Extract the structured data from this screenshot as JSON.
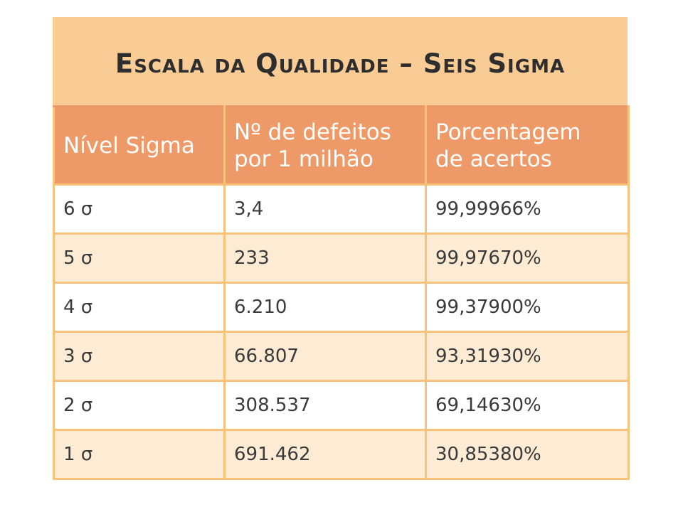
{
  "title": "Escala da Qualidade – Seis Sigma",
  "columns": [
    {
      "line1": "Nível Sigma",
      "line2": ""
    },
    {
      "line1": "Nº de defeitos",
      "line2": "por 1 milhão"
    },
    {
      "line1": "Porcentagem",
      "line2": "de acertos"
    }
  ],
  "rows": [
    {
      "level": "6 σ",
      "defects": "3,4",
      "percent": "99,99966%"
    },
    {
      "level": "5 σ",
      "defects": "233",
      "percent": "99,97670%"
    },
    {
      "level": "4 σ",
      "defects": "6.210",
      "percent": "99,37900%"
    },
    {
      "level": "3 σ",
      "defects": "66.807",
      "percent": "93,31930%"
    },
    {
      "level": "2 σ",
      "defects": "308.537",
      "percent": "69,14630%"
    },
    {
      "level": "1 σ",
      "defects": "691.462",
      "percent": "30,85380%"
    }
  ],
  "colors": {
    "title_background": "#f8cc94",
    "header_background": "#ee9a68",
    "row_tint": "#fdebd4",
    "border": "#f8c278"
  }
}
